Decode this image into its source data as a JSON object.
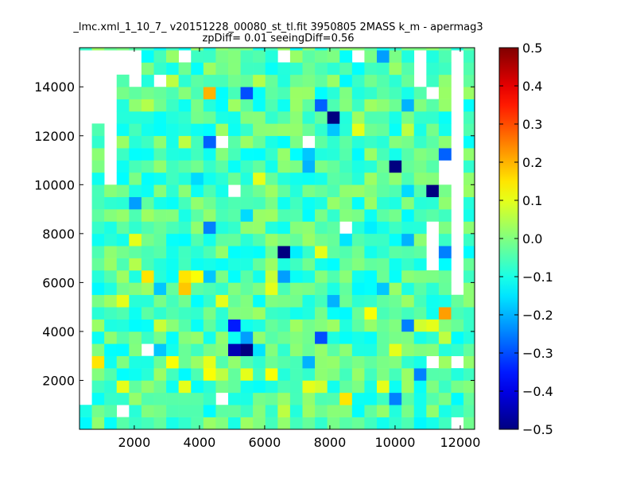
{
  "chart_data": {
    "type": "heatmap",
    "title_line1": "_lmc.xml_1_10_7_ v20151228_00080_st_tl.fit 3950805 2MASS k_m - apermag3",
    "title_line2": "zpDiff= 0.01 seeingDiff=0.56",
    "xlabel": "",
    "ylabel": "",
    "xlim": [
      320,
      12440
    ],
    "ylim": [
      0,
      15600
    ],
    "x_ticks": [
      2000,
      4000,
      6000,
      8000,
      10000,
      12000
    ],
    "y_ticks": [
      2000,
      4000,
      6000,
      8000,
      10000,
      12000,
      14000
    ],
    "x_tick_labels": [
      "2000",
      "4000",
      "6000",
      "8000",
      "10000",
      "12000"
    ],
    "y_tick_labels": [
      "2000",
      "4000",
      "6000",
      "8000",
      "10000",
      "12000",
      "14000"
    ],
    "colormap": "jet",
    "color_range": [
      -0.5,
      0.5
    ],
    "colorbar_ticks": [
      0.5,
      0.4,
      0.3,
      0.2,
      0.1,
      0.0,
      -0.1,
      -0.2,
      -0.3,
      -0.4,
      -0.5
    ],
    "colorbar_tick_labels": [
      "0.5",
      "0.4",
      "0.3",
      "0.2",
      "0.1",
      "0.0",
      "−0.1",
      "−0.2",
      "−0.3",
      "−0.4",
      "−0.5"
    ],
    "grid": false,
    "cell_size": [
      380,
      500
    ],
    "x_edges_start": 320,
    "y_edges_start": 0,
    "background_value": -0.05,
    "empty_cells": [
      [
        0,
        2
      ],
      [
        0,
        3
      ],
      [
        0,
        4
      ],
      [
        0,
        5
      ],
      [
        0,
        6
      ],
      [
        0,
        7
      ],
      [
        0,
        8
      ],
      [
        0,
        9
      ],
      [
        0,
        10
      ],
      [
        0,
        11
      ],
      [
        0,
        12
      ],
      [
        0,
        13
      ],
      [
        0,
        14
      ],
      [
        0,
        15
      ],
      [
        0,
        16
      ],
      [
        0,
        17
      ],
      [
        0,
        18
      ],
      [
        0,
        19
      ],
      [
        0,
        20
      ],
      [
        0,
        21
      ],
      [
        0,
        22
      ],
      [
        0,
        23
      ],
      [
        0,
        24
      ],
      [
        0,
        25
      ],
      [
        0,
        26
      ],
      [
        0,
        27
      ],
      [
        0,
        28
      ],
      [
        0,
        29
      ],
      [
        0,
        30
      ],
      [
        1,
        25
      ],
      [
        1,
        26
      ],
      [
        1,
        27
      ],
      [
        1,
        28
      ],
      [
        1,
        29
      ],
      [
        1,
        30
      ],
      [
        2,
        20
      ],
      [
        2,
        21
      ],
      [
        2,
        22
      ],
      [
        2,
        23
      ],
      [
        2,
        24
      ],
      [
        2,
        25
      ],
      [
        2,
        26
      ],
      [
        2,
        27
      ],
      [
        2,
        28
      ],
      [
        2,
        29
      ],
      [
        2,
        30
      ],
      [
        3,
        29
      ],
      [
        3,
        30
      ],
      [
        4,
        28
      ],
      [
        4,
        29
      ],
      [
        4,
        30
      ],
      [
        8,
        30
      ],
      [
        27,
        28
      ],
      [
        27,
        29
      ],
      [
        27,
        30
      ],
      [
        29,
        20
      ],
      [
        29,
        21
      ],
      [
        30,
        0
      ],
      [
        30,
        5
      ],
      [
        30,
        11
      ],
      [
        30,
        12
      ],
      [
        30,
        13
      ],
      [
        30,
        14
      ],
      [
        30,
        15
      ],
      [
        30,
        16
      ],
      [
        30,
        17
      ],
      [
        30,
        18
      ],
      [
        30,
        19
      ],
      [
        30,
        20
      ],
      [
        30,
        21
      ],
      [
        30,
        22
      ],
      [
        30,
        23
      ],
      [
        30,
        24
      ],
      [
        30,
        25
      ],
      [
        30,
        26
      ],
      [
        30,
        27
      ],
      [
        30,
        28
      ],
      [
        30,
        29
      ],
      [
        30,
        30
      ],
      [
        3,
        1
      ],
      [
        5,
        6
      ],
      [
        6,
        28
      ],
      [
        11,
        2
      ],
      [
        11,
        23
      ],
      [
        12,
        19
      ],
      [
        16,
        30
      ],
      [
        18,
        23
      ],
      [
        21,
        16
      ],
      [
        22,
        30
      ],
      [
        28,
        5
      ],
      [
        28,
        13
      ],
      [
        28,
        14
      ],
      [
        28,
        15
      ],
      [
        28,
        16
      ],
      [
        28,
        27
      ]
    ],
    "cells": [
      [
        0,
        4,
        0.05
      ],
      [
        0,
        5,
        0.25
      ],
      [
        1,
        5,
        0.15
      ],
      [
        3,
        10,
        0.1
      ],
      [
        3,
        3,
        0.1
      ],
      [
        4,
        13,
        0.05
      ],
      [
        4,
        15,
        0.1
      ],
      [
        4,
        17,
        -0.05
      ],
      [
        5,
        12,
        0.15
      ],
      [
        5,
        26,
        0.05
      ],
      [
        6,
        8,
        0.07
      ],
      [
        7,
        5,
        0.12
      ],
      [
        7,
        28,
        0.06
      ],
      [
        8,
        11,
        0.18
      ],
      [
        8,
        12,
        0.15
      ],
      [
        8,
        23,
        0.06
      ],
      [
        8,
        3,
        0.1
      ],
      [
        9,
        12,
        0.12
      ],
      [
        10,
        4,
        0.12
      ],
      [
        10,
        5,
        0.1
      ],
      [
        10,
        27,
        0.2
      ],
      [
        11,
        4,
        0.06
      ],
      [
        11,
        10,
        0.1
      ],
      [
        13,
        4,
        0.1
      ],
      [
        14,
        20,
        0.1
      ],
      [
        14,
        28,
        0.05
      ],
      [
        15,
        4,
        0.12
      ],
      [
        15,
        11,
        0.1
      ],
      [
        15,
        12,
        0.07
      ],
      [
        16,
        12,
        0.12
      ],
      [
        16,
        1,
        0.06
      ],
      [
        18,
        3,
        0.1
      ],
      [
        19,
        3,
        0.08
      ],
      [
        19,
        14,
        0.1
      ],
      [
        21,
        2,
        0.15
      ],
      [
        22,
        24,
        0.1
      ],
      [
        23,
        9,
        0.12
      ],
      [
        24,
        3,
        0.1
      ],
      [
        25,
        6,
        0.1
      ],
      [
        26,
        24,
        0.06
      ],
      [
        27,
        8,
        0.08
      ],
      [
        28,
        8,
        0.1
      ],
      [
        29,
        7,
        0.06
      ],
      [
        29,
        9,
        0.22
      ],
      [
        10,
        23,
        -0.28
      ],
      [
        10,
        16,
        -0.25
      ],
      [
        10,
        12,
        -0.18
      ],
      [
        12,
        8,
        -0.35
      ],
      [
        12,
        6,
        -0.45
      ],
      [
        13,
        7,
        -0.22
      ],
      [
        13,
        6,
        -0.5
      ],
      [
        13,
        17,
        -0.16
      ],
      [
        13,
        27,
        -0.3
      ],
      [
        14,
        6,
        -0.15
      ],
      [
        14,
        26,
        -0.12
      ],
      [
        15,
        26,
        -0.05
      ],
      [
        16,
        12,
        -0.22
      ],
      [
        16,
        14,
        -0.5
      ],
      [
        18,
        5,
        -0.2
      ],
      [
        18,
        22,
        -0.18
      ],
      [
        18,
        29,
        -0.02
      ],
      [
        18,
        21,
        -0.2
      ],
      [
        19,
        26,
        -0.28
      ],
      [
        19,
        7,
        -0.3
      ],
      [
        20,
        24,
        -0.18
      ],
      [
        20,
        25,
        -0.5
      ],
      [
        21,
        16,
        -0.18
      ],
      [
        21,
        15,
        -0.15
      ],
      [
        21,
        7,
        -0.12
      ],
      [
        20,
        10,
        -0.2
      ],
      [
        20,
        9,
        -0.12
      ],
      [
        24,
        11,
        -0.18
      ],
      [
        24,
        14,
        -0.08
      ],
      [
        25,
        15,
        -0.12
      ],
      [
        25,
        21,
        -0.5
      ],
      [
        25,
        2,
        -0.25
      ],
      [
        26,
        8,
        -0.25
      ],
      [
        26,
        15,
        -0.2
      ],
      [
        26,
        19,
        -0.16
      ],
      [
        28,
        19,
        -0.5
      ],
      [
        28,
        14,
        -0.12
      ],
      [
        29,
        22,
        -0.28
      ],
      [
        29,
        14,
        -0.25
      ],
      [
        27,
        4,
        -0.25
      ],
      [
        25,
        12,
        -0.12
      ],
      [
        26,
        26,
        -0.2
      ],
      [
        30,
        17,
        -0.08
      ],
      [
        24,
        30,
        -0.22
      ],
      [
        27,
        30,
        -0.16
      ],
      [
        4,
        18,
        -0.22
      ],
      [
        7,
        12,
        -0.12
      ],
      [
        6,
        11,
        -0.18
      ],
      [
        9,
        20,
        -0.16
      ],
      [
        6,
        6,
        -0.18
      ],
      [
        12,
        2,
        -0.1
      ],
      [
        14,
        10,
        -0.12
      ],
      [
        17,
        14,
        -0.14
      ],
      [
        2,
        16,
        -0.1
      ],
      [
        22,
        18,
        -0.12
      ],
      [
        23,
        16,
        -0.14
      ]
    ]
  }
}
